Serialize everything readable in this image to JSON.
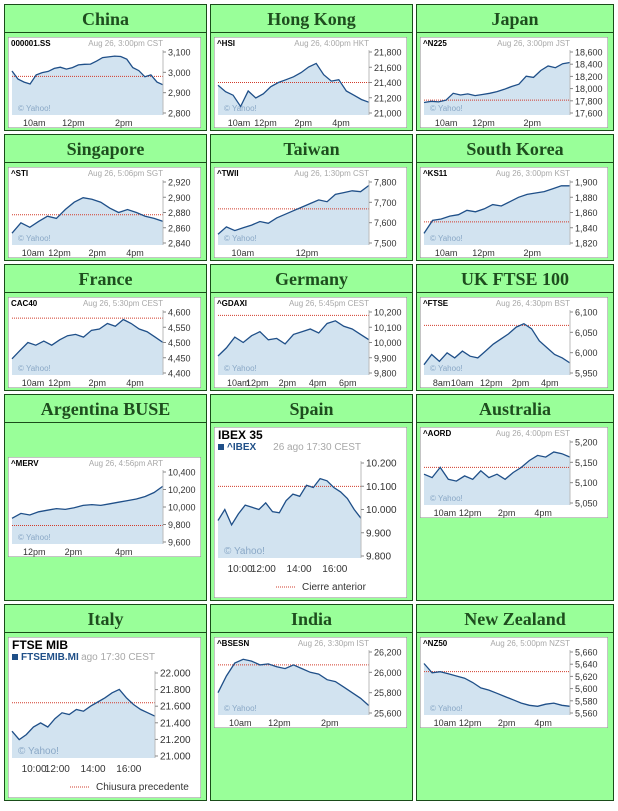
{
  "colors": {
    "cell_bg": "#99ff99",
    "cell_border": "#1a4d1a",
    "title_text": "#1e4d1e",
    "line": "#1f4f88",
    "fill": "#d2e3f0",
    "ref_line": "#d13c2c",
    "header_gray": "#a8a8a8",
    "ticker_text": "#000000",
    "watermark": "#8aa8c6"
  },
  "chart_data": [
    {
      "region": "China",
      "type": "line",
      "ticker": "000001.SS",
      "timestamp": "Aug 26, 3:00pm CST",
      "y_ticks": [
        "3,100",
        "3,000",
        "2,900",
        "2,800"
      ],
      "x_ticks": [
        "10am",
        "12pm",
        "2pm"
      ],
      "ylim": [
        2780,
        3120
      ],
      "ref": 2982,
      "y": [
        3010,
        2968,
        2952,
        2942,
        2990,
        3002,
        3008,
        3024,
        3030,
        3020,
        3028,
        3042,
        3045,
        3046,
        3062,
        3080,
        3084,
        3088,
        3086,
        3072,
        3028,
        3012,
        2980,
        2990,
        2952,
        2938
      ]
    },
    {
      "region": "Hong Kong",
      "type": "line",
      "ticker": "^HSI",
      "timestamp": "Aug 26, 4:00pm HKT",
      "y_ticks": [
        "21,800",
        "21,600",
        "21,400",
        "21,200",
        "21,000"
      ],
      "x_ticks": [
        "10am",
        "12pm",
        "2pm",
        "4pm"
      ],
      "ylim": [
        20960,
        21880
      ],
      "ref": 21420,
      "y": [
        21380,
        21290,
        21240,
        21080,
        21300,
        21200,
        21260,
        21360,
        21420,
        21460,
        21500,
        21560,
        21640,
        21690,
        21530,
        21440,
        21460,
        21300,
        21240,
        21180,
        21140
      ]
    },
    {
      "region": "Japan",
      "type": "line",
      "ticker": "^N225",
      "timestamp": "Aug 26, 3:00pm JST",
      "y_ticks": [
        "18,600",
        "18,400",
        "18,200",
        "18,000",
        "17,800",
        "17,600"
      ],
      "x_ticks": [
        "10am",
        "12pm",
        "2pm"
      ],
      "ylim": [
        17540,
        18680
      ],
      "ref": 17800,
      "y": [
        17760,
        17780,
        17770,
        17800,
        17920,
        17890,
        17910,
        17880,
        17900,
        17920,
        17950,
        17990,
        18040,
        18080,
        18220,
        18200,
        18320,
        18400,
        18370,
        18440,
        18460
      ]
    },
    {
      "region": "Singapore",
      "type": "line",
      "ticker": "^STI",
      "timestamp": "Aug 26, 5:06pm SGT",
      "y_ticks": [
        "2,920",
        "2,900",
        "2,880",
        "2,860",
        "2,840"
      ],
      "x_ticks": [
        "10am",
        "12pm",
        "2pm",
        "4pm"
      ],
      "ylim": [
        2836,
        2924
      ],
      "ref": 2877,
      "y": [
        2852,
        2866,
        2860,
        2868,
        2875,
        2872,
        2884,
        2894,
        2900,
        2898,
        2894,
        2886,
        2880,
        2884,
        2880,
        2875,
        2872,
        2868
      ]
    },
    {
      "region": "Taiwan",
      "type": "line",
      "ticker": "^TWII",
      "timestamp": "Aug 26, 1:30pm CST",
      "y_ticks": [
        "7,800",
        "7,700",
        "7,600",
        "7,500"
      ],
      "x_ticks": [
        "10am",
        "12pm"
      ],
      "ylim": [
        7480,
        7840
      ],
      "ref": 7680,
      "y": [
        7540,
        7580,
        7560,
        7575,
        7590,
        7610,
        7600,
        7630,
        7650,
        7670,
        7690,
        7710,
        7730,
        7720,
        7760,
        7770,
        7780,
        7775,
        7810
      ]
    },
    {
      "region": "South Korea",
      "type": "line",
      "ticker": "^KS11",
      "timestamp": "Aug 26, 3:00pm KST",
      "y_ticks": [
        "1,900",
        "1,880",
        "1,860",
        "1,840",
        "1,820"
      ],
      "x_ticks": [
        "10am",
        "12pm",
        "2pm"
      ],
      "ylim": [
        1816,
        1906
      ],
      "ref": 1848,
      "y": [
        1832,
        1850,
        1852,
        1856,
        1858,
        1864,
        1862,
        1866,
        1872,
        1870,
        1876,
        1882,
        1886,
        1888,
        1890,
        1894,
        1898,
        1898
      ]
    },
    {
      "region": "France",
      "type": "line",
      "ticker": "CAC40",
      "timestamp": "Aug 26, 5:30pm CEST",
      "y_ticks": [
        "4,600",
        "4,550",
        "4,500",
        "4,450",
        "4,400"
      ],
      "x_ticks": [
        "10am",
        "12pm",
        "2pm",
        "4pm"
      ],
      "ylim": [
        4380,
        4620
      ],
      "ref": 4590,
      "y": [
        4440,
        4470,
        4500,
        4490,
        4505,
        4490,
        4510,
        4525,
        4530,
        4520,
        4545,
        4550,
        4570,
        4560,
        4585,
        4570,
        4550,
        4540,
        4520,
        4500
      ]
    },
    {
      "region": "Germany",
      "type": "line",
      "ticker": "^GDAXI",
      "timestamp": "Aug 26, 5:45pm CEST",
      "y_ticks": [
        "10,200",
        "10,100",
        "10,000",
        "9,900",
        "9,800"
      ],
      "x_ticks": [
        "10am",
        "12pm",
        "2pm",
        "4pm",
        "6pm"
      ],
      "ylim": [
        9760,
        10240
      ],
      "ref": 10200,
      "y": [
        9900,
        9960,
        10040,
        10000,
        10050,
        10080,
        10020,
        10030,
        9990,
        10060,
        10080,
        10100,
        10070,
        10140,
        10160,
        10120,
        10100,
        10060,
        10020
      ]
    },
    {
      "region": "UK FTSE 100",
      "type": "line",
      "ticker": "^FTSE",
      "timestamp": "Aug 26, 4:30pm BST",
      "y_ticks": [
        "6,100",
        "6,050",
        "6,000",
        "5,950"
      ],
      "x_ticks": [
        "8am",
        "10am",
        "12pm",
        "2pm",
        "4pm"
      ],
      "ylim": [
        5940,
        6130
      ],
      "ref": 6085,
      "y": [
        5970,
        6000,
        5980,
        6005,
        5990,
        6010,
        5995,
        5990,
        6010,
        6030,
        6045,
        6060,
        6080,
        6090,
        6075,
        6040,
        6020,
        6000,
        5990,
        5975
      ]
    },
    {
      "region": "Argentina BUSE",
      "type": "line",
      "ticker": "^MERV",
      "timestamp": "Aug 26, 4:56pm ART",
      "y_ticks": [
        "10,400",
        "10,200",
        "10,000",
        "9,800",
        "9,600"
      ],
      "x_ticks": [
        "12pm",
        "2pm",
        "4pm"
      ],
      "ylim": [
        9560,
        10480
      ],
      "ref": 9790,
      "y": [
        9880,
        9940,
        9920,
        9960,
        9980,
        10000,
        9990,
        10010,
        10040,
        10050,
        10040,
        10060,
        10080,
        10100,
        10120,
        10150,
        10200,
        10280
      ]
    },
    {
      "region": "Spain",
      "type": "line",
      "ticker": "^IBEX",
      "title": "IBEX 35",
      "timestamp": "26 ago 17:30 CEST",
      "y_ticks": [
        "10.200",
        "10.100",
        "10.000",
        "9.900",
        "9.800"
      ],
      "x_ticks": [
        "10:00",
        "12:00",
        "14:00",
        "16:00"
      ],
      "ylim": [
        9780,
        10220
      ],
      "ref": 10105,
      "legend": "Cierre anterior",
      "y": [
        9950,
        10000,
        9930,
        9980,
        10020,
        10010,
        10000,
        10030,
        9990,
        9985,
        10040,
        10070,
        10060,
        10110,
        10100,
        10140,
        10130,
        10100,
        10080,
        10050,
        10000,
        9960
      ]
    },
    {
      "region": "Australia",
      "type": "line",
      "ticker": "^AORD",
      "timestamp": "Aug 26, 4:00pm EST",
      "y_ticks": [
        "5,200",
        "5,150",
        "5,100",
        "5,050"
      ],
      "x_ticks": [
        "10am",
        "12pm",
        "2pm",
        "4pm"
      ],
      "ylim": [
        5030,
        5220
      ],
      "ref": 5140,
      "y": [
        5120,
        5110,
        5140,
        5105,
        5100,
        5115,
        5105,
        5130,
        5110,
        5120,
        5105,
        5125,
        5140,
        5160,
        5175,
        5170,
        5185,
        5180,
        5170
      ]
    },
    {
      "region": "Italy",
      "type": "line",
      "ticker": "FTSEMIB.MI",
      "title": "FTSE MIB",
      "timestamp": "ago 17:30 CEST",
      "y_ticks": [
        "22.000",
        "21.800",
        "21.600",
        "21.400",
        "21.200",
        "21.000"
      ],
      "x_ticks": [
        "10:00",
        "12:00",
        "14:00",
        "16:00"
      ],
      "ylim": [
        20980,
        22020
      ],
      "ref": 21640,
      "legend": "Chiusura precedente",
      "y": [
        21300,
        21200,
        21260,
        21350,
        21400,
        21350,
        21450,
        21520,
        21500,
        21560,
        21540,
        21600,
        21650,
        21700,
        21760,
        21800,
        21700,
        21620,
        21560,
        21520,
        21480
      ]
    },
    {
      "region": "India",
      "type": "line",
      "ticker": "^BSESN",
      "timestamp": "Aug 26, 3:30pm IST",
      "y_ticks": [
        "26,200",
        "26,000",
        "25,800",
        "25,600"
      ],
      "x_ticks": [
        "10am",
        "12pm",
        "2pm"
      ],
      "ylim": [
        25540,
        26240
      ],
      "ref": 26080,
      "y": [
        25780,
        25960,
        26100,
        26140,
        26120,
        26080,
        26090,
        26060,
        26040,
        26080,
        26040,
        26000,
        25980,
        25920,
        25900,
        25840,
        25780,
        25720,
        25640
      ]
    },
    {
      "region": "New Zealand",
      "type": "line",
      "ticker": "^NZ50",
      "timestamp": "Aug 26, 5:00pm NZST",
      "y_ticks": [
        "5,660",
        "5,640",
        "5,620",
        "5,600",
        "5,580",
        "5,560"
      ],
      "x_ticks": [
        "10am",
        "12pm",
        "2pm",
        "4pm"
      ],
      "ylim": [
        5550,
        5670
      ],
      "ref": 5630,
      "y": [
        5645,
        5628,
        5630,
        5626,
        5622,
        5618,
        5610,
        5600,
        5596,
        5590,
        5584,
        5578,
        5572,
        5568,
        5566,
        5570,
        5572,
        5568,
        5566
      ]
    }
  ]
}
